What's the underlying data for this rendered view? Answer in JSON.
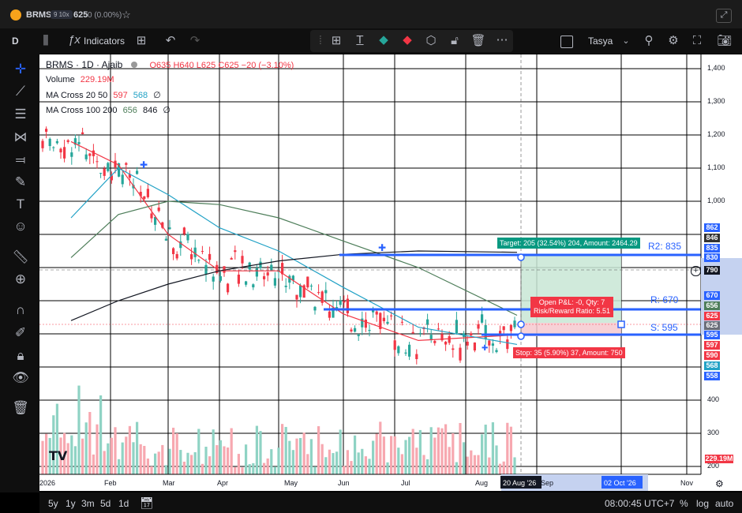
{
  "app": {
    "symbol": "BRMS",
    "plan_badge": "9 10x",
    "price": "625",
    "change": "0 (0.00%)"
  },
  "toolbar": {
    "timeframe": "D",
    "indicators_label": "Indicators",
    "layout_name": "Tasya"
  },
  "legend": {
    "title": "BRMS · 1D · Ajaib",
    "ohlc": "O635 H640 L625 C625 −20 (−3.10%)",
    "volume_label": "Volume",
    "volume_value": "229.19M",
    "ma1_label": "MA Cross 20 50",
    "ma1_v1": "597",
    "ma1_v2": "568",
    "ma1_v3": "∅",
    "ma2_label": "MA Cross 100 200",
    "ma2_v1": "656",
    "ma2_v2": "846",
    "ma2_v3": "∅"
  },
  "price_axis": {
    "ticks": [
      "1,400",
      "1,300",
      "1,200",
      "1,100",
      "1,000",
      "400",
      "300",
      "200"
    ],
    "badges": [
      {
        "label": "862",
        "color": "#2962ff"
      },
      {
        "label": "846",
        "color": "#333333"
      },
      {
        "label": "835",
        "color": "#2962ff"
      },
      {
        "label": "830",
        "color": "#2962ff"
      },
      {
        "label": "790",
        "color": "#131722"
      },
      {
        "label": "670",
        "color": "#2962ff"
      },
      {
        "label": "656",
        "color": "#4e7e5a"
      },
      {
        "label": "625",
        "color": "#f23645"
      },
      {
        "label": "625",
        "color": "#6a6d78"
      },
      {
        "label": "595",
        "color": "#2962ff"
      },
      {
        "label": "597",
        "color": "#f23645"
      },
      {
        "label": "590",
        "color": "#f23645"
      },
      {
        "label": "568",
        "color": "#22a2c6"
      },
      {
        "label": "558",
        "color": "#2962ff"
      },
      {
        "label": "229.19M",
        "color": "#f23645"
      }
    ]
  },
  "time_axis": {
    "labels": [
      "2026",
      "Feb",
      "Mar",
      "Apr",
      "May",
      "Jun",
      "Jul",
      "Aug",
      "Sep",
      "Nov"
    ],
    "highlight_1": "20 Aug '26",
    "highlight_2": "02 Oct '26"
  },
  "drawings": {
    "r2_label": "R2: 835",
    "r_label": "R: 670",
    "s_label": "S: 595",
    "target_text": "Target: 205 (32.54%) 204, Amount: 2464.29",
    "open_pl_text": "Open P&L: -0, Qty: 7",
    "rr_text": "Risk/Reward Ratio: 5.51",
    "stop_text": "Stop: 35 (5.90%) 37, Amount: 750"
  },
  "bottom": {
    "ranges": [
      "5y",
      "1y",
      "3m",
      "5d",
      "1d"
    ],
    "time": "08:00:45 UTC+7",
    "percent": "%",
    "log": "log",
    "auto": "auto"
  },
  "chart_data": {
    "type": "line",
    "series": [
      {
        "name": "MA Cross 20 50",
        "x": [
          "Jan",
          "Feb",
          "Mar",
          "Apr",
          "May",
          "Jun",
          "Jul",
          "Aug"
        ],
        "values": [
          1180,
          1110,
          900,
          790,
          790,
          660,
          580,
          597
        ]
      },
      {
        "name": "MA Cross 20 50",
        "x": [
          "Jan",
          "Feb",
          "Mar",
          "Apr",
          "May",
          "Jun",
          "Jul",
          "Aug"
        ],
        "values": [
          950,
          1100,
          1020,
          920,
          850,
          740,
          620,
          568
        ]
      },
      {
        "name": "MA Cross 100 200",
        "x": [
          "Jan",
          "Feb",
          "Mar",
          "Apr",
          "May",
          "Jun",
          "Jul",
          "Aug"
        ],
        "values": [
          830,
          960,
          1000,
          990,
          950,
          880,
          800,
          656
        ]
      },
      {
        "name": "MA Cross 100 200",
        "x": [
          "Jan",
          "Feb",
          "Mar",
          "Apr",
          "May",
          "Jun",
          "Jul",
          "Aug"
        ],
        "values": [
          640,
          700,
          750,
          790,
          820,
          840,
          850,
          846
        ]
      }
    ],
    "ylim": [
      180,
      1450
    ]
  }
}
